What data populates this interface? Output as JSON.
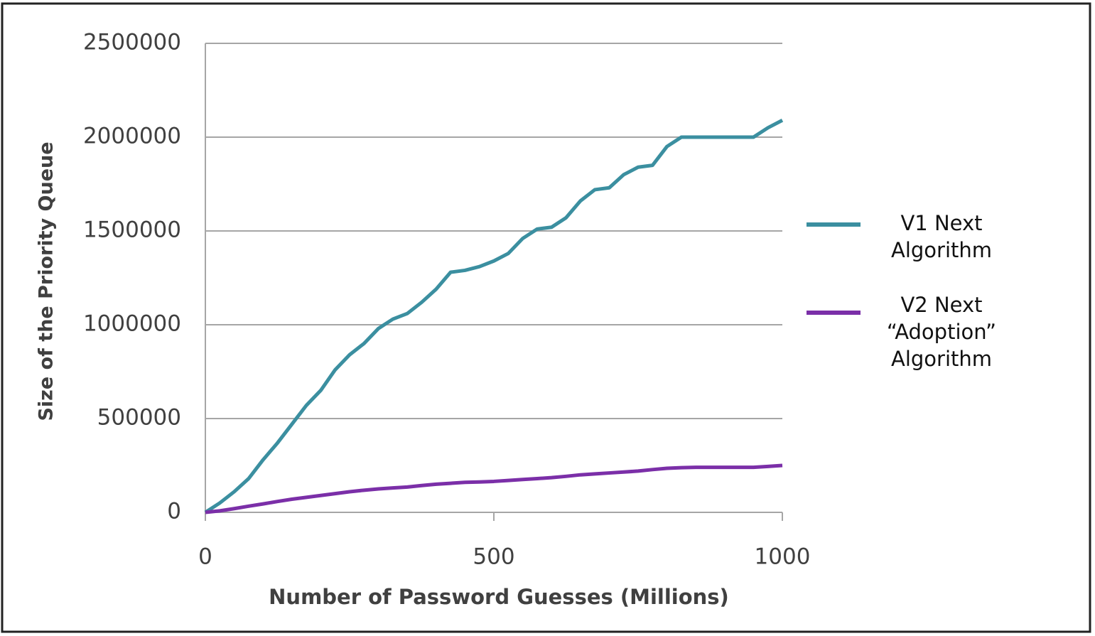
{
  "chart_data": {
    "type": "line",
    "xlabel": "Number of Password Guesses (Millions)",
    "ylabel": "Size of the Priority Queue",
    "x": [
      0,
      25,
      50,
      75,
      100,
      125,
      150,
      175,
      200,
      225,
      250,
      275,
      300,
      325,
      350,
      375,
      400,
      425,
      450,
      475,
      500,
      525,
      550,
      575,
      600,
      625,
      650,
      675,
      700,
      725,
      750,
      775,
      800,
      825,
      850,
      875,
      900,
      925,
      950,
      975,
      1000
    ],
    "series": [
      {
        "name": "V1 Next Algorithm",
        "color": "#3b8fa0",
        "values": [
          0,
          50000,
          110000,
          180000,
          280000,
          370000,
          470000,
          570000,
          650000,
          760000,
          840000,
          900000,
          980000,
          1030000,
          1060000,
          1120000,
          1190000,
          1280000,
          1290000,
          1310000,
          1340000,
          1380000,
          1460000,
          1510000,
          1520000,
          1570000,
          1660000,
          1720000,
          1730000,
          1800000,
          1840000,
          1850000,
          1950000,
          2000000,
          2000000,
          2000000,
          2000000,
          2000000,
          2000000,
          2050000,
          2090000
        ]
      },
      {
        "name": "V2 Next “Adoption” Algorithm",
        "color": "#7b2fa8",
        "values": [
          0,
          8000,
          20000,
          33000,
          45000,
          58000,
          70000,
          80000,
          90000,
          100000,
          110000,
          118000,
          125000,
          130000,
          135000,
          143000,
          150000,
          155000,
          160000,
          162000,
          165000,
          170000,
          175000,
          180000,
          185000,
          192000,
          200000,
          205000,
          210000,
          215000,
          220000,
          228000,
          235000,
          238000,
          240000,
          240000,
          240000,
          240000,
          240000,
          245000,
          250000
        ]
      }
    ],
    "xlim": [
      0,
      1000
    ],
    "xticks": [
      0,
      500,
      1000
    ],
    "ylim": [
      0,
      2500000
    ],
    "yticks": [
      0,
      500000,
      1000000,
      1500000,
      2000000,
      2500000
    ],
    "grid": true
  }
}
